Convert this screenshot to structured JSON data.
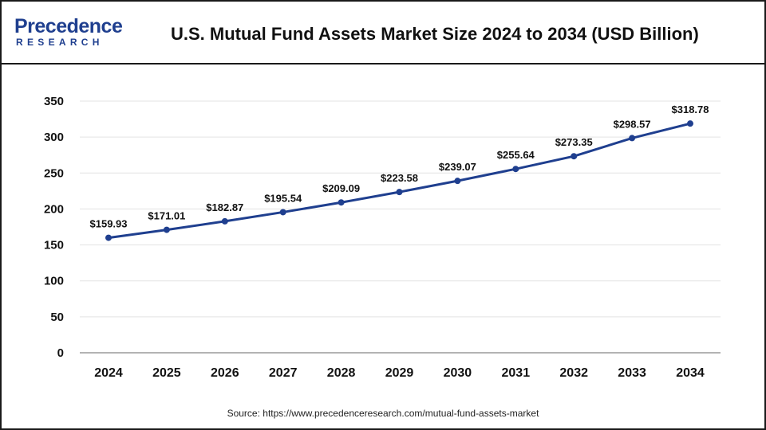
{
  "brand": {
    "main": "Precedence",
    "sub": "RESEARCH",
    "color": "#1f3f8f"
  },
  "chart_data": {
    "type": "line",
    "title": "U.S. Mutual Fund Assets Market Size 2024 to 2034 (USD Billion)",
    "xlabel": "",
    "ylabel": "",
    "categories": [
      "2024",
      "2025",
      "2026",
      "2027",
      "2028",
      "2029",
      "2030",
      "2031",
      "2032",
      "2033",
      "2034"
    ],
    "series": [
      {
        "values": [
          159.93,
          171.01,
          182.87,
          195.54,
          209.09,
          223.58,
          239.07,
          255.64,
          273.35,
          298.57,
          318.78
        ],
        "data_labels": [
          "$159.93",
          "$171.01",
          "$182.87",
          "$195.54",
          "$209.09",
          "$223.58",
          "$239.07",
          "$255.64",
          "$273.35",
          "$298.57",
          "$318.78"
        ],
        "color": "#1f3f8f"
      }
    ],
    "ylim": [
      0,
      350
    ],
    "yticks": [
      0,
      50,
      100,
      150,
      200,
      250,
      300,
      350
    ],
    "grid": true,
    "legend": "none"
  },
  "source": "Source: https://www.precedenceresearch.com/mutual-fund-assets-market"
}
